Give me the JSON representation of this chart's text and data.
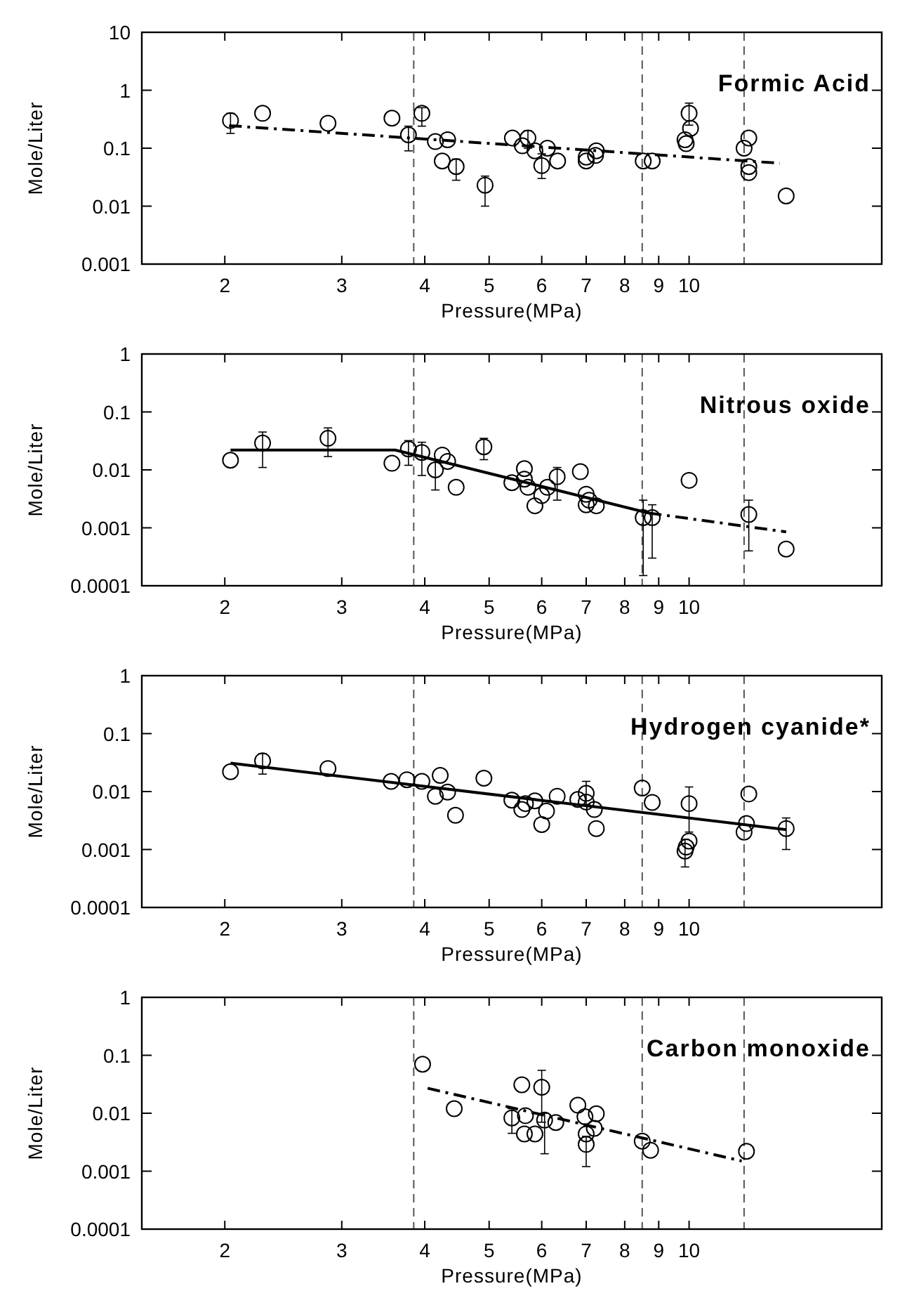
{
  "chart_data": [
    {
      "type": "scatter",
      "title": "Formic Acid",
      "xlabel": "Pressure(MPa)",
      "ylabel": "Mole/Liter",
      "log": "xy",
      "grid": false,
      "marker": "circle",
      "xlim": [
        1.5,
        19.5
      ],
      "xticks": [
        2,
        3,
        4,
        5,
        6,
        7,
        8,
        9,
        10
      ],
      "ylim": [
        0.001,
        10
      ],
      "yticks": [
        0.001,
        0.01,
        0.1,
        1,
        10
      ],
      "ref_lines": [
        {
          "axis": "x",
          "value": 3.85,
          "color": "#555555",
          "line_style": "dashed"
        },
        {
          "axis": "x",
          "value": 8.5,
          "color": "#555555",
          "line_style": "dashed"
        },
        {
          "axis": "x",
          "value": 12.1,
          "color": "#555555",
          "line_style": "dashed"
        }
      ],
      "series": [
        {
          "color": "#000000",
          "x": [
            2.04,
            2.28,
            2.86,
            3.57,
            3.78,
            3.96,
            4.15,
            4.33,
            4.25,
            4.46,
            4.93,
            5.42,
            5.61,
            5.72,
            5.86,
            6.0,
            6.12,
            6.34,
            7.0,
            7.0,
            7.23,
            7.25,
            8.53,
            8.8,
            9.86,
            9.9,
            10.0,
            10.05,
            12.3,
            12.1,
            12.3,
            12.3,
            14.0
          ],
          "values": [
            0.3,
            0.4,
            0.27,
            0.33,
            0.17,
            0.4,
            0.13,
            0.14,
            0.06,
            0.048,
            0.023,
            0.15,
            0.11,
            0.15,
            0.09,
            0.05,
            0.1,
            0.06,
            0.07,
            0.06,
            0.075,
            0.09,
            0.06,
            0.06,
            0.14,
            0.12,
            0.4,
            0.22,
            0.15,
            0.1,
            0.048,
            0.038,
            0.015
          ],
          "errors": [
            [
              0.18,
              0.4
            ],
            null,
            null,
            null,
            [
              0.09,
              0.24
            ],
            [
              0.24,
              0.5
            ],
            null,
            null,
            null,
            [
              0.028,
              0.065
            ],
            [
              0.01,
              0.033
            ],
            null,
            null,
            [
              0.1,
              0.2
            ],
            null,
            [
              0.03,
              0.08
            ],
            null,
            null,
            null,
            null,
            null,
            null,
            null,
            null,
            null,
            null,
            [
              0.25,
              0.6
            ],
            null,
            null,
            null,
            null,
            null,
            null
          ]
        },
        {
          "type": "line",
          "color": "#000000",
          "line_style": "dashed",
          "marker": "none",
          "x": [
            2.03,
            13.7
          ],
          "values": [
            0.245,
            0.055
          ]
        }
      ]
    },
    {
      "type": "scatter",
      "title": "Nitrous oxide",
      "xlabel": "Pressure(MPa)",
      "ylabel": "Mole/Liter",
      "log": "xy",
      "grid": false,
      "marker": "circle",
      "xlim": [
        1.5,
        19.5
      ],
      "xticks": [
        2,
        3,
        4,
        5,
        6,
        7,
        8,
        9,
        10
      ],
      "ylim": [
        0.0001,
        1
      ],
      "yticks": [
        0.0001,
        0.001,
        0.01,
        0.1,
        1
      ],
      "ref_lines": [
        {
          "axis": "x",
          "value": 3.85,
          "color": "#555555",
          "line_style": "dashed"
        },
        {
          "axis": "x",
          "value": 8.5,
          "color": "#555555",
          "line_style": "dashed"
        },
        {
          "axis": "x",
          "value": 12.1,
          "color": "#555555",
          "line_style": "dashed"
        }
      ],
      "series": [
        {
          "color": "#000000",
          "x": [
            2.04,
            2.28,
            2.86,
            3.57,
            3.78,
            3.96,
            4.15,
            4.25,
            4.33,
            4.46,
            4.91,
            5.41,
            5.65,
            5.65,
            5.72,
            5.86,
            6.0,
            6.12,
            6.33,
            6.86,
            7.0,
            7.0,
            7.07,
            7.25,
            8.53,
            8.8,
            10.0,
            12.3,
            14.0
          ],
          "values": [
            0.0147,
            0.029,
            0.035,
            0.013,
            0.023,
            0.02,
            0.01,
            0.018,
            0.014,
            0.005,
            0.025,
            0.006,
            0.0105,
            0.0069,
            0.005,
            0.0024,
            0.0036,
            0.005,
            0.0076,
            0.0093,
            0.0038,
            0.0025,
            0.003,
            0.0024,
            0.0015,
            0.0015,
            0.0066,
            0.0017,
            0.00043
          ],
          "errors": [
            null,
            [
              0.011,
              0.045
            ],
            [
              0.017,
              0.053
            ],
            null,
            [
              0.012,
              0.032
            ],
            [
              0.008,
              0.03
            ],
            [
              0.0045,
              0.015
            ],
            null,
            null,
            null,
            [
              0.015,
              0.035
            ],
            null,
            null,
            null,
            null,
            null,
            null,
            null,
            [
              0.003,
              0.011
            ],
            null,
            null,
            null,
            null,
            null,
            [
              0.00015,
              0.003
            ],
            [
              0.0003,
              0.0025
            ],
            null,
            [
              0.0004,
              0.003
            ],
            null
          ]
        },
        {
          "type": "line",
          "color": "#000000",
          "line_style": "solid",
          "marker": "none",
          "x": [
            2.04,
            3.61,
            8.7
          ],
          "values": [
            0.022,
            0.022,
            0.0018
          ]
        },
        {
          "type": "line",
          "color": "#000000",
          "line_style": "dashed",
          "marker": "none",
          "x": [
            8.7,
            14.0
          ],
          "values": [
            0.0018,
            0.00085
          ]
        }
      ]
    },
    {
      "type": "scatter",
      "title": "Hydrogen cyanide*",
      "xlabel": "Pressure(MPa)",
      "ylabel": "Mole/Liter",
      "log": "xy",
      "grid": false,
      "marker": "circle",
      "xlim": [
        1.5,
        19.5
      ],
      "xticks": [
        2,
        3,
        4,
        5,
        6,
        7,
        8,
        9,
        10
      ],
      "ylim": [
        0.0001,
        1
      ],
      "yticks": [
        0.0001,
        0.001,
        0.01,
        0.1,
        1
      ],
      "ref_lines": [
        {
          "axis": "x",
          "value": 3.85,
          "color": "#555555",
          "line_style": "dashed"
        },
        {
          "axis": "x",
          "value": 8.5,
          "color": "#555555",
          "line_style": "dashed"
        },
        {
          "axis": "x",
          "value": 12.1,
          "color": "#555555",
          "line_style": "dashed"
        }
      ],
      "series": [
        {
          "color": "#000000",
          "x": [
            2.04,
            2.28,
            2.86,
            3.56,
            3.76,
            3.96,
            4.15,
            4.22,
            4.33,
            4.45,
            4.91,
            5.41,
            5.6,
            5.67,
            5.86,
            6.0,
            6.1,
            6.33,
            6.8,
            7.0,
            7.0,
            7.2,
            7.25,
            8.5,
            8.8,
            9.9,
            9.86,
            10.0,
            10.0,
            12.3,
            12.2,
            12.1,
            14.0
          ],
          "values": [
            0.022,
            0.034,
            0.025,
            0.015,
            0.016,
            0.015,
            0.0083,
            0.019,
            0.0098,
            0.0039,
            0.017,
            0.0071,
            0.0049,
            0.0062,
            0.0069,
            0.0027,
            0.0046,
            0.0083,
            0.0073,
            0.0093,
            0.0066,
            0.0049,
            0.0023,
            0.0115,
            0.0065,
            0.0011,
            0.00094,
            0.0014,
            0.0062,
            0.0091,
            0.0028,
            0.002,
            0.0023
          ],
          "errors": [
            null,
            [
              0.02,
              0.045
            ],
            null,
            null,
            null,
            null,
            null,
            null,
            null,
            null,
            null,
            null,
            null,
            null,
            null,
            null,
            null,
            null,
            null,
            [
              0.006,
              0.015
            ],
            null,
            null,
            null,
            null,
            null,
            null,
            [
              0.0005,
              0.0015
            ],
            null,
            [
              0.002,
              0.012
            ],
            null,
            null,
            null,
            [
              0.001,
              0.0035
            ]
          ]
        },
        {
          "type": "line",
          "color": "#000000",
          "line_style": "solid",
          "marker": "none",
          "x": [
            2.04,
            14.0
          ],
          "values": [
            0.031,
            0.0022
          ]
        }
      ]
    },
    {
      "type": "scatter",
      "title": "Carbon monoxide",
      "xlabel": "Pressure(MPa)",
      "ylabel": "Mole/Liter",
      "log": "xy",
      "grid": false,
      "marker": "circle",
      "xlim": [
        1.5,
        19.5
      ],
      "xticks": [
        2,
        3,
        4,
        5,
        6,
        7,
        8,
        9,
        10
      ],
      "ylim": [
        0.0001,
        1
      ],
      "yticks": [
        0.0001,
        0.001,
        0.01,
        0.1,
        1
      ],
      "ref_lines": [
        {
          "axis": "x",
          "value": 3.85,
          "color": "#555555",
          "line_style": "dashed"
        },
        {
          "axis": "x",
          "value": 8.5,
          "color": "#555555",
          "line_style": "dashed"
        },
        {
          "axis": "x",
          "value": 12.1,
          "color": "#555555",
          "line_style": "dashed"
        }
      ],
      "series": [
        {
          "color": "#000000",
          "x": [
            3.97,
            4.43,
            5.41,
            5.6,
            5.67,
            5.65,
            5.86,
            6.0,
            6.06,
            6.3,
            6.8,
            6.97,
            7.0,
            7.0,
            7.2,
            7.25,
            8.5,
            8.75,
            12.2
          ],
          "values": [
            0.07,
            0.012,
            0.0083,
            0.031,
            0.0091,
            0.0044,
            0.0044,
            0.028,
            0.0076,
            0.0069,
            0.0138,
            0.0087,
            0.0044,
            0.0029,
            0.0055,
            0.0098,
            0.0033,
            0.0023,
            0.0022
          ],
          "errors": [
            null,
            null,
            [
              0.0045,
              0.012
            ],
            null,
            null,
            null,
            null,
            [
              0.007,
              0.055
            ],
            [
              0.002,
              0.01
            ],
            null,
            null,
            null,
            null,
            [
              0.0012,
              0.004
            ],
            null,
            null,
            null,
            null,
            null
          ]
        },
        {
          "type": "line",
          "color": "#000000",
          "line_style": "dashed",
          "marker": "none",
          "x": [
            4.04,
            12.0
          ],
          "values": [
            0.027,
            0.0015
          ]
        }
      ]
    }
  ]
}
